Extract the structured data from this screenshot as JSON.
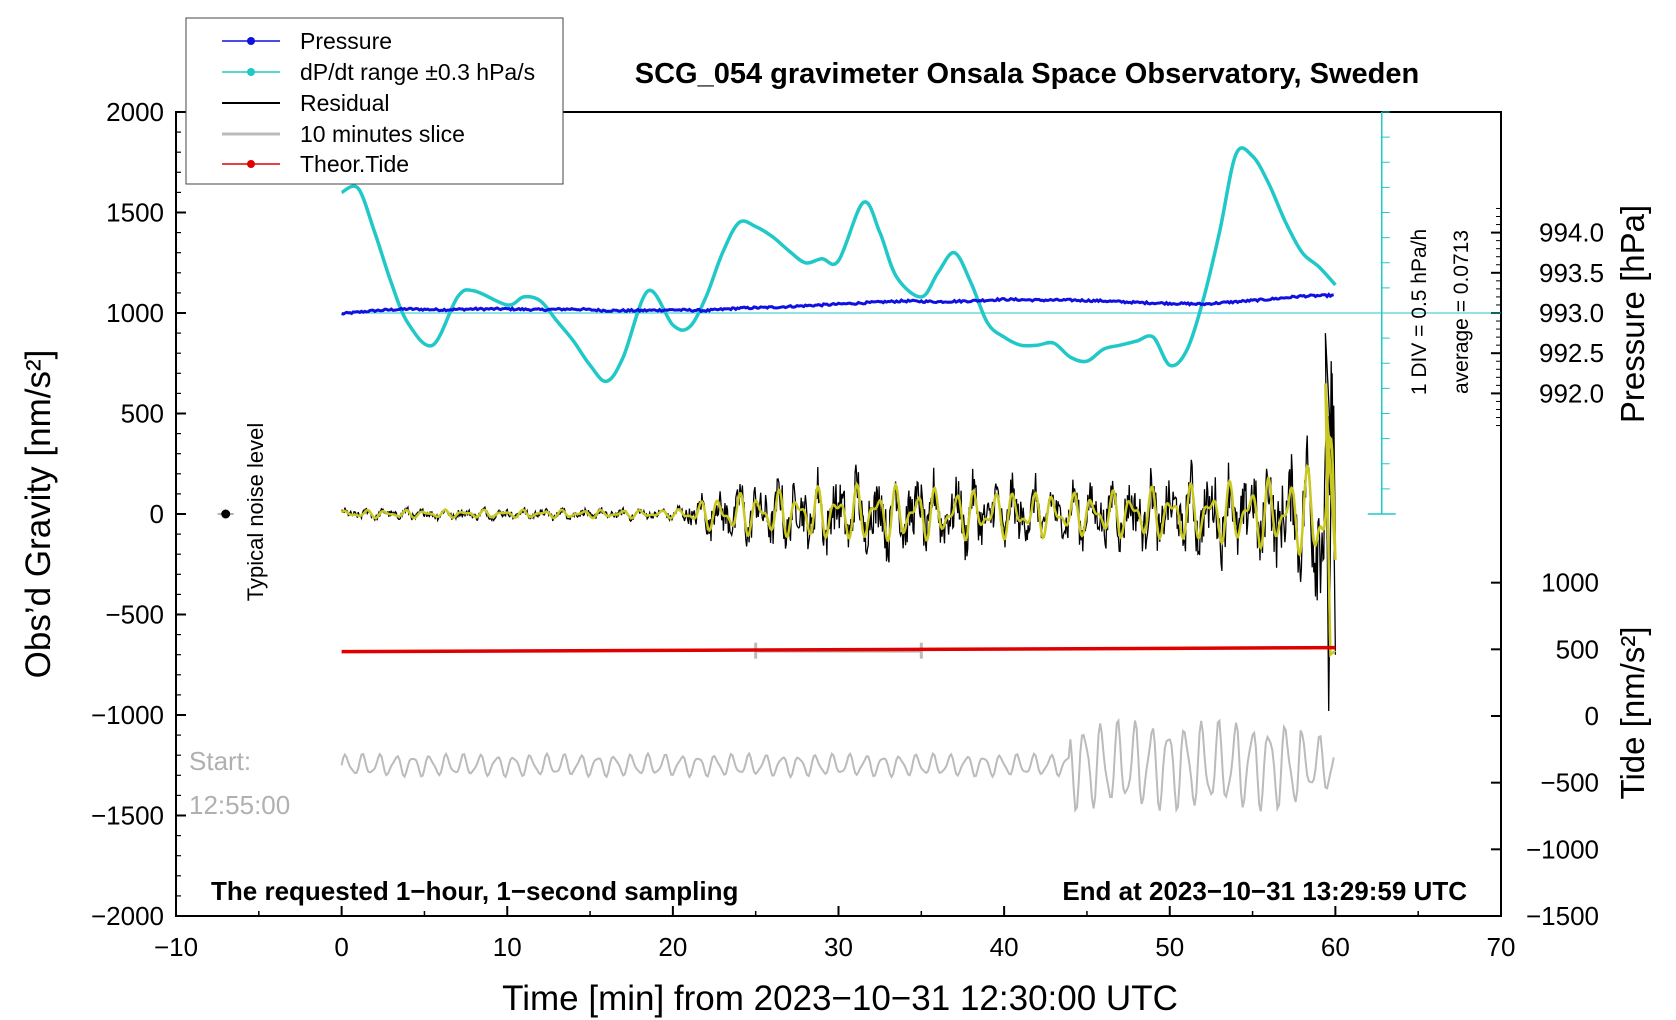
{
  "chart_data": {
    "type": "line",
    "title": "SCG_054 gravimeter Onsala Space Observatory, Sweden",
    "xlabel": "Time [min] from 2023−10−31 12:30:00 UTC",
    "ylabel_left": "Obs’d Gravity [nm/s²]",
    "ylabel_right_top": "Pressure [hPa]",
    "ylabel_right_bottom": "Tide [nm/s²]",
    "xlim": [
      -10,
      70
    ],
    "ylim": [
      -2000,
      2000
    ],
    "x_ticks": [
      -10,
      0,
      10,
      20,
      30,
      40,
      50,
      60,
      70
    ],
    "x_tick_labels": [
      "−10",
      "0",
      "10",
      "20",
      "30",
      "40",
      "50",
      "60",
      "70"
    ],
    "y_ticks": [
      2000,
      1500,
      1000,
      500,
      0,
      -500,
      -1000,
      -1500,
      -2000
    ],
    "y_tick_labels": [
      "2000",
      "1500",
      "1000",
      "500",
      "0",
      "−500",
      "−1000",
      "−1500",
      "−2000"
    ],
    "pressure_axis": {
      "ticks": [
        994.0,
        993.5,
        993.0,
        992.5,
        992.0
      ],
      "tick_labels": [
        "994.0",
        "993.5",
        "993.0",
        "992.5",
        "992.0"
      ],
      "range": [
        991.5,
        994.5
      ]
    },
    "tide_axis": {
      "ticks": [
        1000,
        500,
        0,
        -500,
        -1000,
        -1500
      ],
      "tick_labels": [
        "1000",
        "500",
        "0",
        "−500",
        "−1000",
        "−1500"
      ],
      "range": [
        -1500,
        1500
      ]
    },
    "legend": {
      "position": "top-left",
      "entries": [
        {
          "label": "Pressure",
          "color": "#1010e0",
          "marker": true
        },
        {
          "label": "dP/dt range ±0.3 hPa/s",
          "color": "#20c8c8",
          "marker": true
        },
        {
          "label": "Residual",
          "color": "#000000",
          "marker": false
        },
        {
          "label": "10 minutes slice",
          "color": "#bbbbbb",
          "marker": false
        },
        {
          "label": "Theor.Tide",
          "color": "#e00000",
          "marker": true
        }
      ]
    },
    "series": [
      {
        "name": "Pressure",
        "axis": "pressure",
        "color": "#1010e0",
        "x": [
          0,
          2,
          4,
          6,
          8,
          10,
          12,
          14,
          16,
          18,
          20,
          22,
          24,
          26,
          28,
          30,
          32,
          34,
          36,
          38,
          40,
          42,
          44,
          46,
          48,
          50,
          52,
          54,
          56,
          58,
          60
        ],
        "values": [
          992.99,
          993.03,
          993.05,
          993.04,
          993.05,
          993.05,
          993.04,
          993.05,
          993.03,
          993.03,
          993.04,
          993.03,
          993.06,
          993.07,
          993.09,
          993.11,
          993.13,
          993.15,
          993.14,
          993.15,
          993.17,
          993.16,
          993.16,
          993.15,
          993.13,
          993.12,
          993.11,
          993.14,
          993.17,
          993.21,
          993.22
        ]
      },
      {
        "name": "dP/dt",
        "axis": "gravity",
        "color": "#20c8c8",
        "x": [
          0,
          1,
          2,
          3,
          4,
          5.5,
          7,
          8,
          10,
          11,
          12,
          13,
          14,
          15,
          16,
          17,
          18.5,
          20,
          21,
          22,
          23,
          24,
          25,
          26,
          27,
          28,
          29,
          30,
          31.5,
          32.5,
          33.5,
          35,
          36,
          37,
          38,
          39,
          40,
          41,
          42,
          43,
          44,
          45,
          46,
          47,
          48,
          49,
          50,
          51,
          52,
          53,
          54,
          55,
          56,
          57,
          58,
          59,
          60
        ],
        "values": [
          1600,
          1620,
          1400,
          1150,
          950,
          840,
          1080,
          1110,
          1040,
          1080,
          1060,
          960,
          860,
          740,
          660,
          780,
          1110,
          940,
          930,
          1080,
          1300,
          1450,
          1430,
          1380,
          1310,
          1250,
          1270,
          1260,
          1550,
          1400,
          1180,
          1080,
          1200,
          1300,
          1150,
          950,
          880,
          840,
          840,
          850,
          780,
          760,
          820,
          840,
          860,
          880,
          740,
          810,
          1060,
          1400,
          1790,
          1780,
          1640,
          1450,
          1300,
          1230,
          1140
        ]
      },
      {
        "name": "Residual",
        "axis": "gravity",
        "color": "#000000",
        "envelope": [
          [
            0,
            30
          ],
          [
            20,
            30
          ],
          [
            23,
            150
          ],
          [
            32,
            220
          ],
          [
            35,
            200
          ],
          [
            45,
            160
          ],
          [
            55,
            250
          ],
          [
            58,
            300
          ],
          [
            60,
            800
          ]
        ]
      },
      {
        "name": "Theor.Tide",
        "axis": "gravity",
        "color": "#e00000",
        "x": [
          0,
          60
        ],
        "values": [
          -685,
          -665
        ]
      },
      {
        "name": "10 minutes slice",
        "axis": "gravity",
        "color": "#bbbbbb",
        "start_min": 25,
        "end_min": 35,
        "level": -680
      }
    ],
    "noise_marker": {
      "x": -7,
      "y": 0
    },
    "annotations": {
      "noise_label": "Typical noise level",
      "start_label": "Start:",
      "start_time": "12:55:00",
      "div_note": "1 DIV = 0.5 hPa/h",
      "average_note": "average = 0.0713",
      "footer_left": "The requested 1−hour, 1−second sampling",
      "footer_right": "End at 2023−10−31 13:29:59 UTC"
    }
  }
}
